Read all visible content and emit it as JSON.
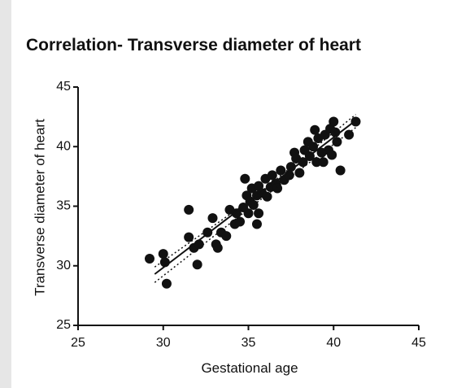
{
  "chart_data": {
    "type": "scatter",
    "title": "Correlation- Transverse diameter of heart",
    "x_label": "Gestational age",
    "y_label": "Transverse diameter of heart",
    "xlim": [
      25,
      45
    ],
    "ylim": [
      25,
      45
    ],
    "xticks": [
      25,
      30,
      35,
      40,
      45
    ],
    "yticks": [
      25,
      30,
      35,
      40,
      45
    ],
    "color": "#111111",
    "x": [
      29.2,
      30.0,
      30.1,
      30.2,
      31.5,
      31.5,
      31.8,
      32.0,
      32.1,
      32.6,
      32.9,
      33.1,
      33.2,
      33.4,
      33.7,
      33.9,
      34.2,
      34.3,
      34.5,
      34.7,
      34.8,
      34.9,
      35.1,
      35.0,
      35.2,
      35.3,
      35.5,
      35.5,
      35.6,
      35.8,
      36.0,
      36.1,
      36.3,
      36.4,
      36.6,
      36.7,
      36.9,
      37.1,
      37.4,
      37.5,
      37.7,
      37.8,
      38.0,
      38.2,
      38.3,
      38.5,
      38.6,
      38.8,
      38.9,
      39.0,
      39.1,
      39.3,
      39.4,
      39.5,
      39.7,
      39.8,
      40.0,
      40.1,
      40.2,
      40.4,
      40.9,
      41.3,
      39.9,
      35.6
    ],
    "values": [
      30.6,
      31.0,
      30.3,
      28.5,
      34.7,
      32.4,
      31.5,
      30.1,
      31.8,
      32.8,
      34.0,
      31.8,
      31.5,
      32.8,
      32.5,
      34.7,
      33.5,
      34.4,
      33.7,
      34.9,
      37.3,
      35.9,
      35.4,
      34.4,
      36.5,
      35.1,
      35.9,
      33.5,
      36.7,
      36.1,
      37.3,
      35.8,
      36.6,
      37.6,
      36.9,
      36.5,
      38.0,
      37.2,
      37.6,
      38.3,
      39.5,
      39.0,
      37.8,
      38.7,
      39.7,
      40.4,
      39.2,
      40.0,
      41.4,
      38.7,
      40.7,
      39.5,
      38.7,
      41.0,
      39.7,
      41.5,
      42.1,
      41.2,
      40.4,
      38.0,
      41.0,
      42.1,
      39.3,
      34.4
    ],
    "fit_line": {
      "x": [
        29.5,
        41.3
      ],
      "y": [
        29.3,
        42.2
      ]
    },
    "confidence_band": {
      "x": [
        29.5,
        35.3,
        41.3
      ],
      "upper": [
        29.9,
        35.7,
        42.7
      ],
      "lower": [
        28.6,
        35.1,
        41.6
      ]
    }
  }
}
